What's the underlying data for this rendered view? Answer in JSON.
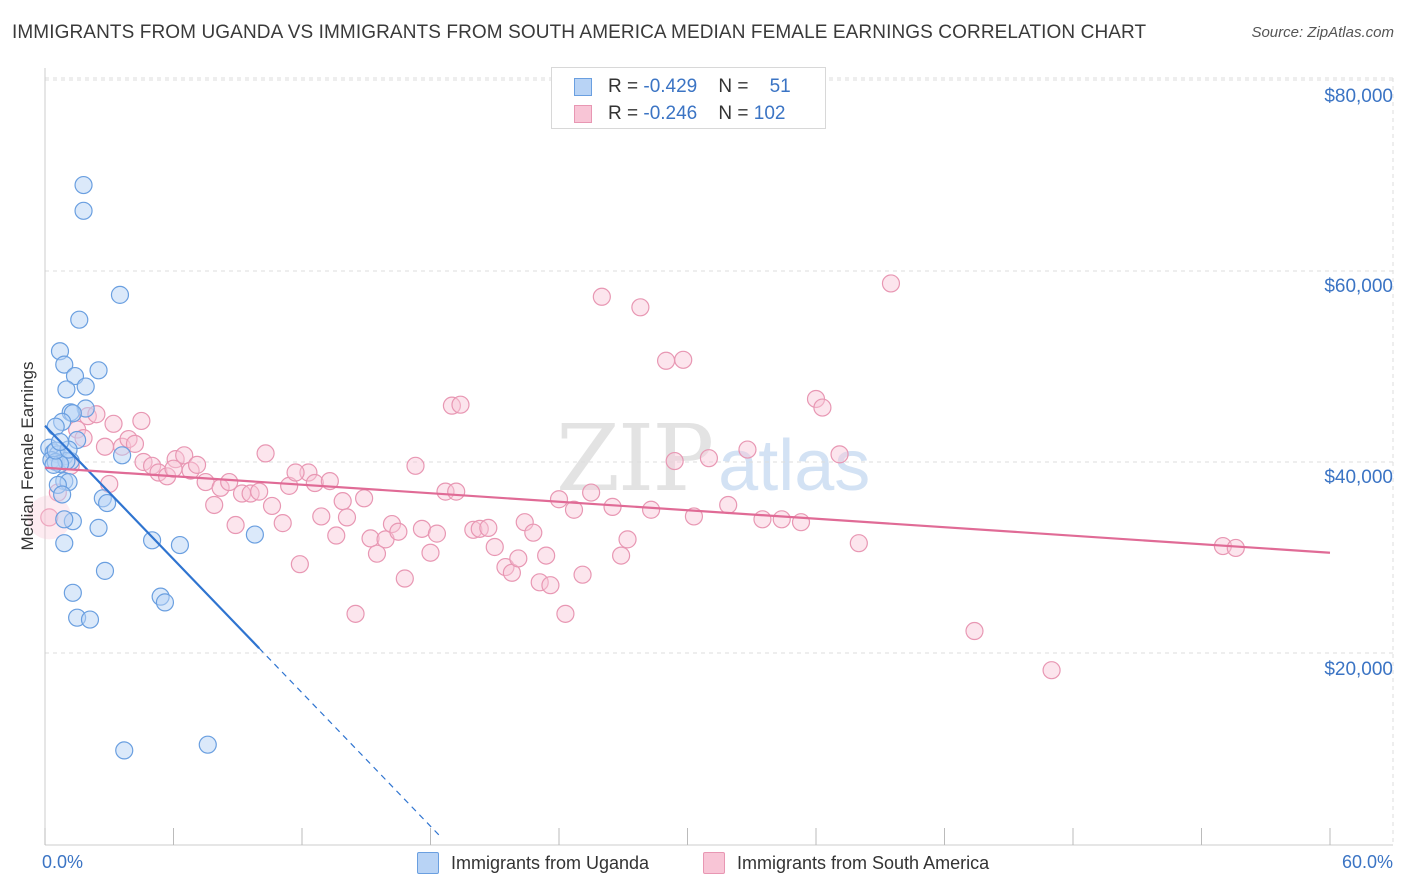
{
  "title": "IMMIGRANTS FROM UGANDA VS IMMIGRANTS FROM SOUTH AMERICA MEDIAN FEMALE EARNINGS CORRELATION CHART",
  "source": "Source: ZipAtlas.com",
  "watermark": {
    "zip": "ZIP",
    "atlas": "atlas"
  },
  "legend": {
    "uganda": {
      "r_label": "R = ",
      "r_value": "-0.429",
      "n_label": "N = ",
      "n_value": "51"
    },
    "south_america": {
      "r_label": "R = ",
      "r_value": "-0.246",
      "n_label": "N = ",
      "n_value": "102"
    }
  },
  "colors": {
    "uganda_fill": "#b8d3f5",
    "uganda_stroke": "#6a9fe0",
    "uganda_line": "#2f74d0",
    "sa_fill": "#f8c5d6",
    "sa_stroke": "#e897b3",
    "sa_line": "#e06b96",
    "grid": "#dddddd",
    "axis_text": "#3b74c4"
  },
  "chart_data": {
    "type": "scatter",
    "title": "IMMIGRANTS FROM UGANDA VS IMMIGRANTS FROM SOUTH AMERICA MEDIAN FEMALE EARNINGS CORRELATION CHART",
    "xlabel": "",
    "ylabel": "Median Female Earnings",
    "xlim": [
      0,
      60
    ],
    "ylim": [
      0,
      82000
    ],
    "x_tick_labels": [
      "0.0%",
      "60.0%"
    ],
    "y_ticks": [
      20000,
      40000,
      60000,
      80000
    ],
    "y_tick_labels": [
      "$20,000",
      "$40,000",
      "$60,000",
      "$80,000"
    ],
    "grid": true,
    "series": [
      {
        "name": "Immigrants from Uganda",
        "r": -0.429,
        "n": 51,
        "trend": {
          "x0": 0,
          "y0": 43800,
          "x1": 10,
          "y1": 20500,
          "dash_to_x": 18.5
        },
        "points": [
          [
            1.8,
            69000
          ],
          [
            1.8,
            66300
          ],
          [
            3.5,
            57500
          ],
          [
            1.6,
            54900
          ],
          [
            0.7,
            51600
          ],
          [
            0.9,
            50200
          ],
          [
            1.4,
            49000
          ],
          [
            2.5,
            49600
          ],
          [
            1.0,
            47600
          ],
          [
            1.9,
            47900
          ],
          [
            1.9,
            45600
          ],
          [
            1.2,
            45200
          ],
          [
            1.3,
            45100
          ],
          [
            0.8,
            44200
          ],
          [
            0.5,
            43700
          ],
          [
            1.5,
            42300
          ],
          [
            0.2,
            41500
          ],
          [
            0.4,
            41000
          ],
          [
            0.6,
            40800
          ],
          [
            0.9,
            40600
          ],
          [
            0.3,
            40200
          ],
          [
            0.5,
            40000
          ],
          [
            1.2,
            40100
          ],
          [
            3.6,
            40700
          ],
          [
            1.0,
            40100
          ],
          [
            0.7,
            39800
          ],
          [
            0.4,
            39700
          ],
          [
            0.9,
            38000
          ],
          [
            1.1,
            37900
          ],
          [
            0.6,
            37600
          ],
          [
            0.8,
            36600
          ],
          [
            2.7,
            36200
          ],
          [
            2.9,
            35700
          ],
          [
            1.3,
            33800
          ],
          [
            0.9,
            34000
          ],
          [
            2.5,
            33100
          ],
          [
            5.0,
            31800
          ],
          [
            6.3,
            31300
          ],
          [
            9.8,
            32400
          ],
          [
            0.9,
            31500
          ],
          [
            2.8,
            28600
          ],
          [
            1.3,
            26300
          ],
          [
            5.4,
            25900
          ],
          [
            5.6,
            25300
          ],
          [
            1.5,
            23700
          ],
          [
            2.1,
            23500
          ],
          [
            3.7,
            9800
          ],
          [
            7.6,
            10400
          ],
          [
            0.5,
            41200
          ],
          [
            1.1,
            41300
          ],
          [
            0.7,
            42100
          ]
        ]
      },
      {
        "name": "Immigrants from South America",
        "r": -0.246,
        "n": 102,
        "trend": {
          "x0": 0,
          "y0": 39400,
          "x1": 60,
          "y1": 30500
        },
        "points": [
          [
            0.2,
            34200
          ],
          [
            0.6,
            36800
          ],
          [
            1.2,
            39600
          ],
          [
            1.5,
            43400
          ],
          [
            1.8,
            42500
          ],
          [
            2.0,
            44800
          ],
          [
            2.4,
            45000
          ],
          [
            2.8,
            41600
          ],
          [
            3.2,
            44000
          ],
          [
            3.6,
            41600
          ],
          [
            3.9,
            42400
          ],
          [
            4.2,
            41900
          ],
          [
            4.5,
            44300
          ],
          [
            4.6,
            40000
          ],
          [
            5.0,
            39600
          ],
          [
            5.3,
            38900
          ],
          [
            5.7,
            38500
          ],
          [
            6.1,
            40300
          ],
          [
            6.5,
            40700
          ],
          [
            6.8,
            39100
          ],
          [
            7.1,
            39700
          ],
          [
            7.5,
            37900
          ],
          [
            7.9,
            35500
          ],
          [
            8.2,
            37300
          ],
          [
            8.6,
            37900
          ],
          [
            8.9,
            33400
          ],
          [
            9.2,
            36700
          ],
          [
            9.6,
            36700
          ],
          [
            10.0,
            36900
          ],
          [
            10.3,
            40900
          ],
          [
            10.6,
            35400
          ],
          [
            11.1,
            33600
          ],
          [
            11.4,
            37500
          ],
          [
            11.9,
            29300
          ],
          [
            12.3,
            38900
          ],
          [
            12.6,
            37800
          ],
          [
            12.9,
            34300
          ],
          [
            13.3,
            38000
          ],
          [
            13.6,
            32300
          ],
          [
            13.9,
            35900
          ],
          [
            14.1,
            34200
          ],
          [
            14.5,
            24100
          ],
          [
            14.9,
            36200
          ],
          [
            15.2,
            32000
          ],
          [
            15.5,
            30400
          ],
          [
            15.9,
            31900
          ],
          [
            16.2,
            33500
          ],
          [
            16.5,
            32700
          ],
          [
            16.8,
            27800
          ],
          [
            17.3,
            39600
          ],
          [
            17.6,
            33000
          ],
          [
            18.0,
            30500
          ],
          [
            18.3,
            32500
          ],
          [
            18.7,
            36900
          ],
          [
            19.0,
            45900
          ],
          [
            19.2,
            36900
          ],
          [
            19.4,
            46000
          ],
          [
            20.0,
            32900
          ],
          [
            20.3,
            33000
          ],
          [
            20.7,
            33100
          ],
          [
            21.0,
            31100
          ],
          [
            21.5,
            29000
          ],
          [
            21.8,
            28400
          ],
          [
            22.1,
            29900
          ],
          [
            22.4,
            33700
          ],
          [
            22.8,
            32600
          ],
          [
            23.1,
            27400
          ],
          [
            23.4,
            30200
          ],
          [
            23.6,
            27100
          ],
          [
            24.0,
            36100
          ],
          [
            24.3,
            24100
          ],
          [
            24.7,
            35000
          ],
          [
            25.1,
            28200
          ],
          [
            25.5,
            36800
          ],
          [
            26.0,
            57300
          ],
          [
            26.5,
            35300
          ],
          [
            26.9,
            30200
          ],
          [
            27.2,
            31900
          ],
          [
            27.8,
            56200
          ],
          [
            28.3,
            35000
          ],
          [
            29.0,
            50600
          ],
          [
            29.4,
            40100
          ],
          [
            29.8,
            50700
          ],
          [
            30.3,
            34300
          ],
          [
            31.0,
            40400
          ],
          [
            31.9,
            35500
          ],
          [
            32.8,
            41300
          ],
          [
            33.5,
            34000
          ],
          [
            34.4,
            34000
          ],
          [
            35.3,
            33700
          ],
          [
            36.0,
            46600
          ],
          [
            36.3,
            45700
          ],
          [
            37.1,
            40800
          ],
          [
            38.0,
            31500
          ],
          [
            39.5,
            58700
          ],
          [
            43.4,
            22300
          ],
          [
            47.0,
            18200
          ],
          [
            55.0,
            31200
          ],
          [
            55.6,
            31000
          ],
          [
            3.0,
            37700
          ],
          [
            6.0,
            39300
          ],
          [
            11.7,
            38900
          ]
        ]
      }
    ]
  },
  "bottom_legend": [
    "Immigrants from Uganda",
    "Immigrants from South America"
  ]
}
